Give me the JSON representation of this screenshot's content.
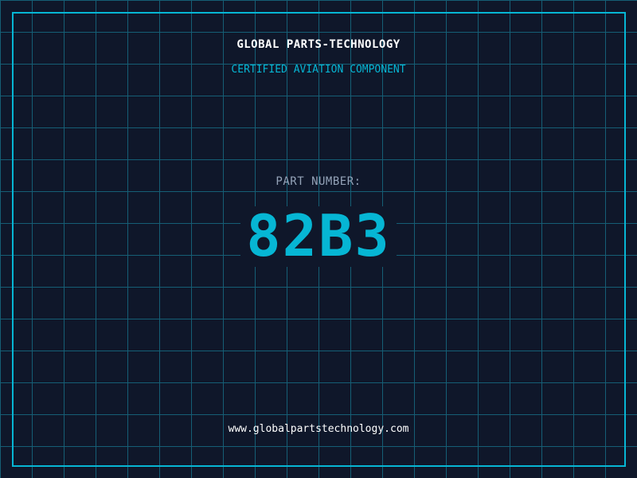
{
  "header": {
    "brand": "GLOBAL PARTS-TECHNOLOGY",
    "tagline": "CERTIFIED AVIATION COMPONENT"
  },
  "part": {
    "label": "PART NUMBER:",
    "number": "82B3"
  },
  "footer": {
    "url": "www.globalpartstechnology.com"
  },
  "colors": {
    "background": "#0f172a",
    "grid": "#155e75",
    "accent": "#06b6d4",
    "label": "#94a3b8"
  }
}
